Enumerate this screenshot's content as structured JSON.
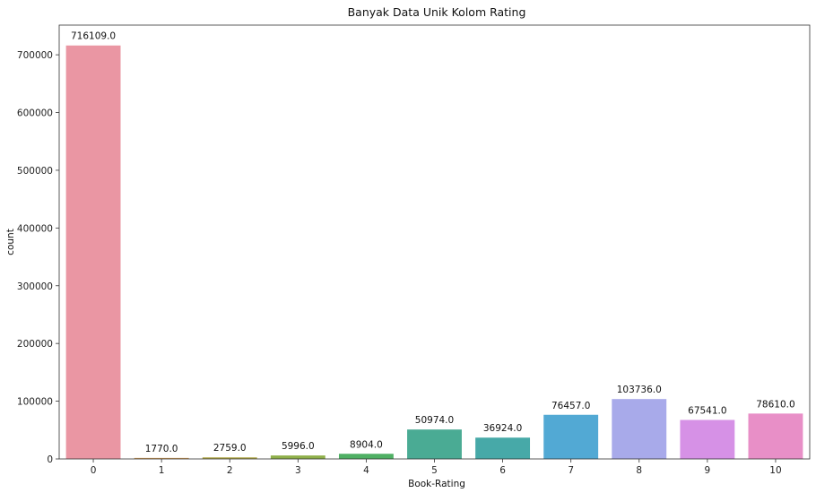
{
  "chart_data": {
    "type": "bar",
    "title": "Banyak Data Unik Kolom Rating",
    "xlabel": "Book-Rating",
    "ylabel": "count",
    "categories": [
      "0",
      "1",
      "2",
      "3",
      "4",
      "5",
      "6",
      "7",
      "8",
      "9",
      "10"
    ],
    "values": [
      716109,
      1770,
      2759,
      5996,
      8904,
      50974,
      36924,
      76457,
      103736,
      67541,
      78610
    ],
    "data_labels": [
      "716109.0",
      "1770.0",
      "2759.0",
      "5996.0",
      "8904.0",
      "50974.0",
      "36924.0",
      "76457.0",
      "103736.0",
      "67541.0",
      "78610.0"
    ],
    "colors": [
      "#ea96a3",
      "#d4a05e",
      "#b2aa4a",
      "#8fb04a",
      "#4fb064",
      "#4aab94",
      "#47a9a8",
      "#52a9d4",
      "#a8aaea",
      "#d691e6",
      "#e88fc7"
    ],
    "ylim": [
      0,
      751414
    ],
    "yticks": [
      0,
      100000,
      200000,
      300000,
      400000,
      500000,
      600000,
      700000
    ],
    "grid": false,
    "legend": "none"
  }
}
